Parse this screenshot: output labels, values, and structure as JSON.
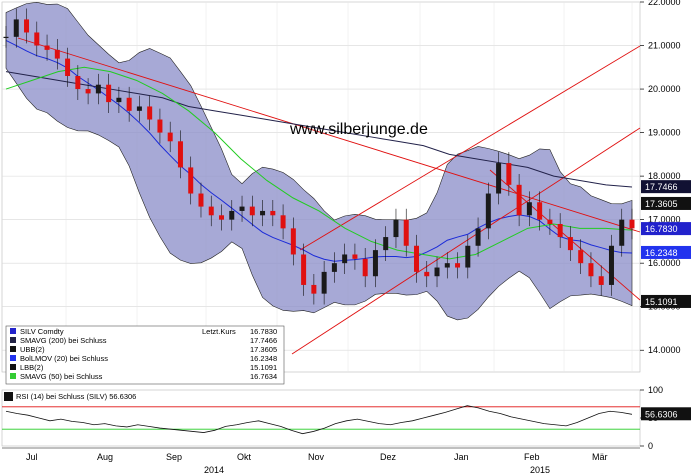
{
  "watermark": "www.silberjunge.de",
  "chart_data": [
    {
      "type": "candlestick",
      "instrument": "SILV Comdty",
      "ylim": [
        13.5,
        22.0
      ],
      "y_ticks": [
        "22.0000",
        "21.0000",
        "20.0000",
        "19.0000",
        "18.0000",
        "17.0000",
        "16.0000",
        "15.0000",
        "14.0000"
      ],
      "y_tick_values": [
        22,
        21,
        20,
        19,
        18,
        17,
        16,
        15,
        14
      ],
      "x_months": [
        "Jul",
        "Aug",
        "Sep",
        "Okt",
        "Nov",
        "Dez",
        "Jan",
        "Feb",
        "Mär"
      ],
      "x_years": [
        "2014",
        "2015"
      ],
      "last_price_label": "Letzt.Kurs",
      "legend": [
        {
          "name": "SILV Comdty",
          "value": "16.7830",
          "color": "#2222cc"
        },
        {
          "name": "SMAVG (200) bei Schluss",
          "value": "17.7466",
          "color": "#222244"
        },
        {
          "name": "UBB(2)",
          "value": "17.3605",
          "color": "#111111"
        },
        {
          "name": "BolLMOV (20) bei Schluss",
          "value": "16.2348",
          "color": "#2233ee"
        },
        {
          "name": "LBB(2)",
          "value": "15.1091",
          "color": "#111111"
        },
        {
          "name": "SMAVG (50) bei Schluss",
          "value": "16.7634",
          "color": "#33cc33"
        }
      ],
      "price_tags": [
        {
          "label": "17.7466",
          "value": 17.7466,
          "bg": "#111133",
          "fg": "#ffffff"
        },
        {
          "label": "17.3605",
          "value": 17.3605,
          "bg": "#111111",
          "fg": "#ffffff"
        },
        {
          "label": "16.7830",
          "value": 16.783,
          "bg": "#2222cc",
          "fg": "#ffffff"
        },
        {
          "label": "16.2348",
          "value": 16.2348,
          "bg": "#2233ee",
          "fg": "#ffffff"
        },
        {
          "label": "15.1091",
          "value": 15.1091,
          "bg": "#111111",
          "fg": "#ffffff"
        }
      ],
      "close_series": [
        21.2,
        21.6,
        21.3,
        21.0,
        20.9,
        20.7,
        20.3,
        20.0,
        19.9,
        20.1,
        19.7,
        19.8,
        19.5,
        19.6,
        19.3,
        19.0,
        18.8,
        18.2,
        17.6,
        17.3,
        17.1,
        17.0,
        17.2,
        17.3,
        17.1,
        17.2,
        17.1,
        16.8,
        16.2,
        15.5,
        15.3,
        15.8,
        16.0,
        16.2,
        16.1,
        15.7,
        16.3,
        16.6,
        17.0,
        16.4,
        15.8,
        15.7,
        15.9,
        16.0,
        15.9,
        16.4,
        16.8,
        17.6,
        18.3,
        17.8,
        17.1,
        17.4,
        17.0,
        16.9,
        16.6,
        16.3,
        16.0,
        15.7,
        15.5,
        16.4,
        17.0,
        16.8
      ],
      "sma200_series": [
        20.4,
        20.3,
        20.2,
        20.1,
        20.0,
        19.9,
        19.8,
        19.6,
        19.5,
        19.4,
        19.3,
        19.2,
        19.1,
        19.0,
        18.9,
        18.8,
        18.7,
        18.5,
        18.4,
        18.3,
        18.2,
        18.0,
        17.9,
        17.8,
        17.75
      ],
      "sma50_series": [
        20.0,
        20.2,
        20.4,
        20.5,
        20.4,
        20.2,
        19.9,
        19.5,
        19.0,
        18.4,
        17.9,
        17.5,
        17.2,
        16.8,
        16.5,
        16.3,
        16.2,
        16.1,
        16.2,
        16.5,
        16.8,
        16.9,
        16.8,
        16.8,
        16.76
      ],
      "rsi": {
        "label": "RSI (14) bei Schluss (SILV)",
        "value": "56.6306",
        "ylim": [
          0,
          100
        ],
        "y_ticks": [
          "100",
          "50",
          "0"
        ],
        "y_tick_values": [
          100,
          50,
          0
        ],
        "upper": 70,
        "lower": 30,
        "series": [
          62,
          58,
          55,
          50,
          45,
          48,
          44,
          42,
          38,
          40,
          36,
          34,
          38,
          35,
          32,
          30,
          28,
          26,
          24,
          28,
          35,
          38,
          42,
          45,
          40,
          35,
          28,
          22,
          26,
          32,
          40,
          45,
          48,
          44,
          40,
          38,
          42,
          45,
          50,
          55,
          60,
          66,
          72,
          68,
          62,
          58,
          52,
          48,
          44,
          40,
          38,
          36,
          42,
          50,
          58,
          62,
          60,
          56.6
        ]
      }
    }
  ]
}
